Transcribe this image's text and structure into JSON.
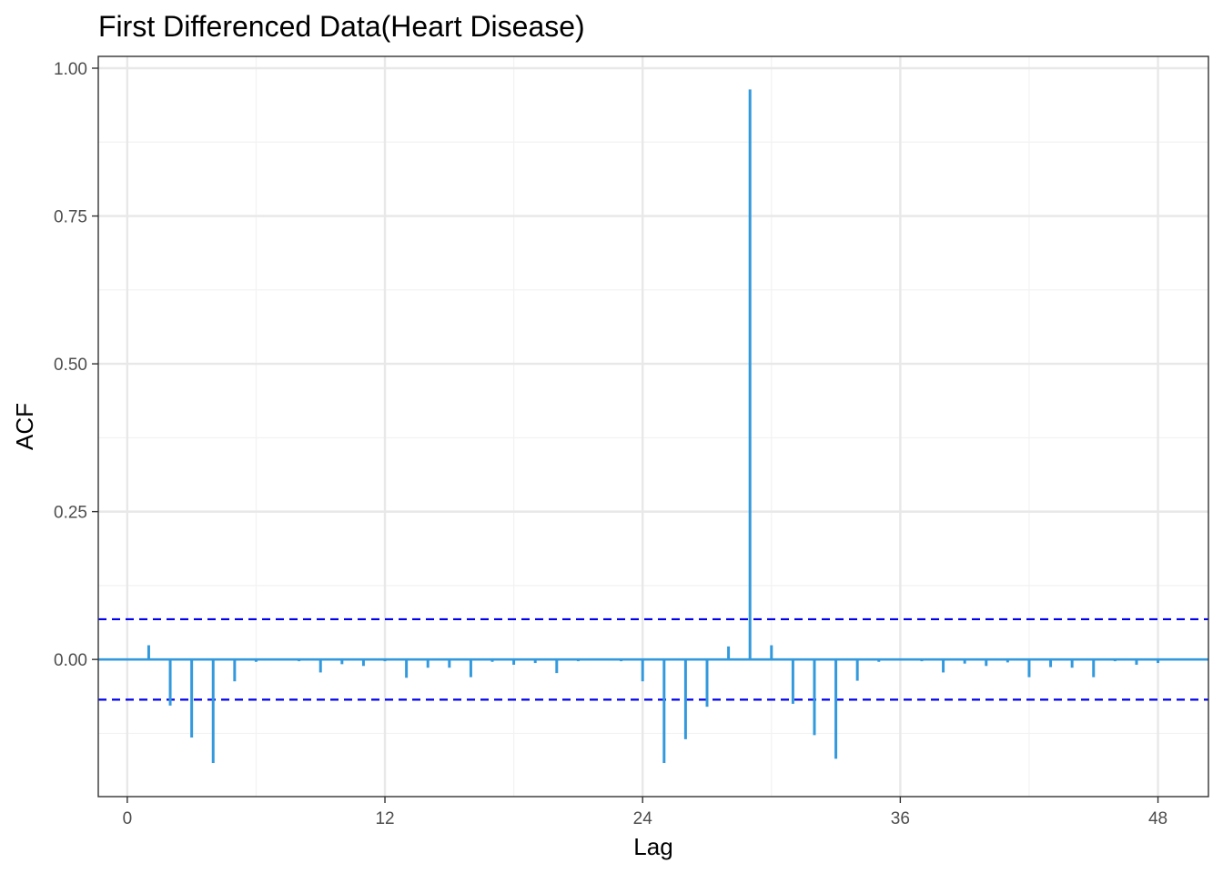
{
  "chart_data": {
    "type": "bar",
    "title": "First Differenced Data(Heart Disease)",
    "xlabel": "Lag",
    "ylabel": "ACF",
    "xlim": [
      -1.35,
      50.35
    ],
    "ylim": [
      -0.232,
      1.02
    ],
    "x_ticks": [
      0,
      12,
      24,
      36,
      48
    ],
    "x_tick_labels": [
      "0",
      "12",
      "24",
      "36",
      "48"
    ],
    "x_minor_ticks": [
      6,
      18,
      30,
      42
    ],
    "y_ticks": [
      0,
      0.25,
      0.5,
      0.75,
      1.0
    ],
    "y_tick_labels": [
      "0.00",
      "0.25",
      "0.50",
      "0.75",
      "1.00"
    ],
    "y_minor_ticks": [
      -0.125,
      0.125,
      0.375,
      0.625,
      0.875
    ],
    "grid": true,
    "confidence_bounds": [
      0.068,
      -0.068
    ],
    "series": [
      {
        "lags": [
          1,
          2,
          3,
          4,
          5,
          6,
          7,
          8,
          9,
          10,
          11,
          12,
          13,
          14,
          15,
          16,
          17,
          18,
          19,
          20,
          21,
          22,
          23,
          24,
          25,
          26,
          27,
          28,
          29,
          30,
          31,
          32,
          33,
          34,
          35,
          36,
          37,
          38,
          39,
          40,
          41,
          42,
          43,
          44,
          45,
          46,
          47,
          48
        ],
        "values": [
          0.024,
          -0.078,
          -0.132,
          -0.175,
          -0.037,
          -0.004,
          -0.001,
          -0.003,
          -0.022,
          -0.008,
          -0.011,
          -0.003,
          -0.031,
          -0.014,
          -0.014,
          -0.03,
          -0.004,
          -0.009,
          -0.006,
          -0.023,
          -0.003,
          0.001,
          -0.003,
          -0.037,
          -0.175,
          -0.135,
          -0.08,
          0.022,
          0.964,
          0.024,
          -0.075,
          -0.128,
          -0.168,
          -0.036,
          -0.004,
          0.0,
          -0.003,
          -0.022,
          -0.007,
          -0.011,
          -0.005,
          -0.03,
          -0.013,
          -0.014,
          -0.03,
          -0.003,
          -0.009,
          -0.006
        ]
      }
    ],
    "colors": {
      "bar": "#3399dd",
      "zero_line": "#3399dd",
      "bounds": "#0000ee",
      "grid_major": "#e8e8e8",
      "grid_minor": "#f2f2f2",
      "panel_border": "#333333"
    }
  }
}
